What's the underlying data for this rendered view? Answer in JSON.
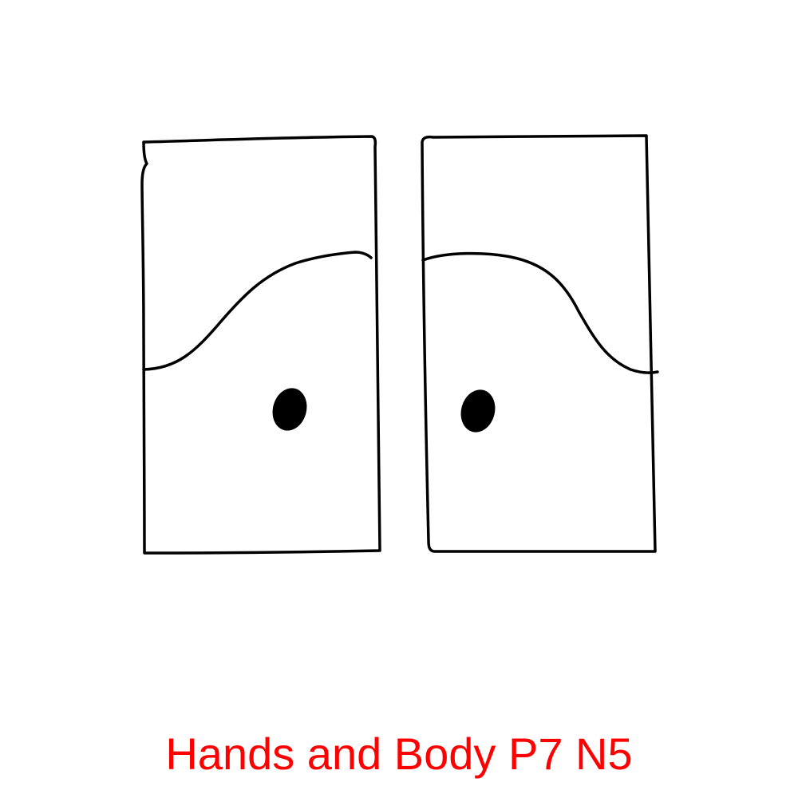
{
  "caption": {
    "text": "Hands and Body P7 N5",
    "color": "#ff0000"
  },
  "drawing": {
    "stroke_color": "#000000",
    "background": "#ffffff",
    "elements": [
      "left-panel",
      "right-panel"
    ]
  }
}
